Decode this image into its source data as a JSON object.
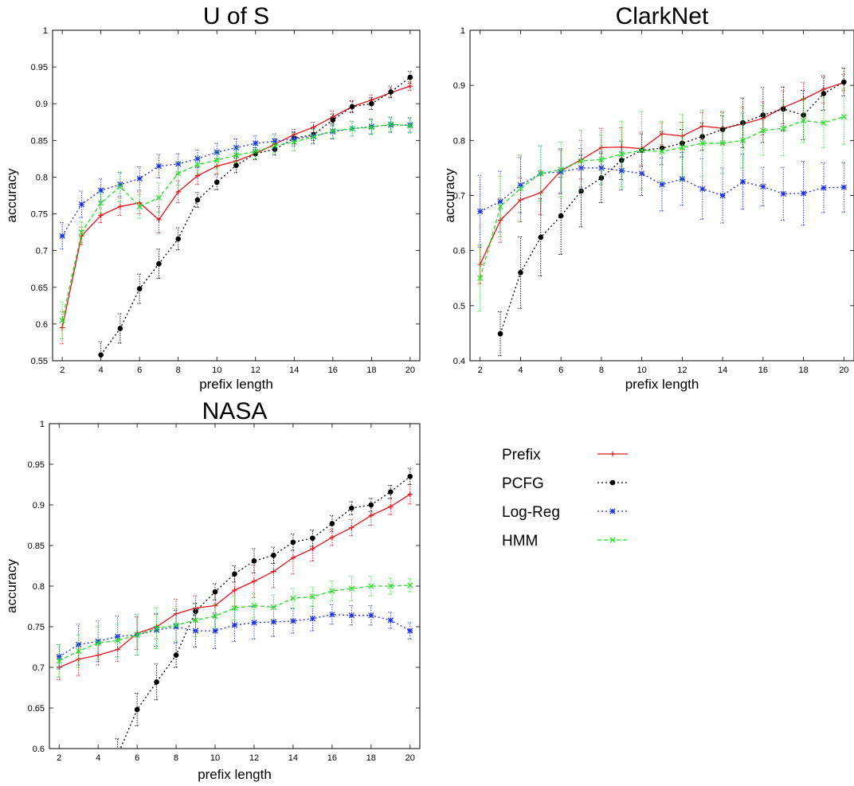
{
  "legend": {
    "placement": "lower-right panel",
    "entries": [
      {
        "label": "Prefix",
        "color": "#e8141b",
        "marker": "plus",
        "dash": "solid"
      },
      {
        "label": "PCFG",
        "color": "#000000",
        "marker": "dot",
        "dash": "dotted"
      },
      {
        "label": "Log-Reg",
        "color": "#1a2ee8",
        "marker": "star",
        "dash": "dotted"
      },
      {
        "label": "HMM",
        "color": "#22e022",
        "marker": "cross",
        "dash": "dashed"
      }
    ]
  },
  "chart_data": [
    {
      "type": "line",
      "title": "U of S",
      "xlabel": "prefix length",
      "ylabel": "accuracy",
      "xlim": [
        1.5,
        20.5
      ],
      "ylim": [
        0.55,
        1
      ],
      "xticks": [
        2,
        4,
        6,
        8,
        10,
        12,
        14,
        16,
        18,
        20
      ],
      "yticks": [
        0.55,
        0.6,
        0.65,
        0.7,
        0.75,
        0.8,
        0.85,
        0.9,
        0.95,
        1
      ],
      "ytick_labels": [
        "0.55",
        "0.6",
        "0.65",
        "0.7",
        "0.75",
        "0.8",
        "0.85",
        "0.9",
        "0.95",
        "1"
      ],
      "grid": false,
      "error_bars": true,
      "x": [
        2,
        3,
        4,
        5,
        6,
        7,
        8,
        9,
        10,
        11,
        12,
        13,
        14,
        15,
        16,
        17,
        18,
        19,
        20
      ],
      "series": [
        {
          "name": "Prefix",
          "values": [
            0.595,
            0.72,
            0.748,
            0.76,
            0.765,
            0.742,
            0.78,
            0.802,
            0.815,
            0.822,
            0.832,
            0.845,
            0.858,
            0.868,
            0.882,
            0.896,
            0.905,
            0.915,
            0.924
          ],
          "err": [
            0.022,
            0.012,
            0.01,
            0.012,
            0.015,
            0.018,
            0.015,
            0.012,
            0.01,
            0.008,
            0.008,
            0.007,
            0.007,
            0.007,
            0.008,
            0.007,
            0.007,
            0.006,
            0.006
          ]
        },
        {
          "name": "PCFG",
          "values": [
            null,
            null,
            0.558,
            0.594,
            0.648,
            0.682,
            0.716,
            0.769,
            0.793,
            0.816,
            0.832,
            0.838,
            0.853,
            0.858,
            0.878,
            0.896,
            0.9,
            0.916,
            0.936
          ],
          "err": [
            null,
            null,
            0.018,
            0.02,
            0.02,
            0.02,
            0.015,
            0.01,
            0.01,
            0.01,
            0.008,
            0.008,
            0.008,
            0.008,
            0.008,
            0.008,
            0.008,
            0.008,
            0.008
          ]
        },
        {
          "name": "Log-Reg",
          "values": [
            0.72,
            0.763,
            0.782,
            0.79,
            0.798,
            0.815,
            0.818,
            0.825,
            0.834,
            0.84,
            0.846,
            0.849,
            0.852,
            0.856,
            0.862,
            0.866,
            0.869,
            0.871,
            0.871
          ],
          "err": [
            0.018,
            0.018,
            0.016,
            0.016,
            0.016,
            0.016,
            0.014,
            0.012,
            0.012,
            0.012,
            0.01,
            0.01,
            0.01,
            0.01,
            0.01,
            0.01,
            0.01,
            0.01,
            0.01
          ]
        },
        {
          "name": "HMM",
          "values": [
            0.605,
            0.725,
            0.765,
            0.787,
            0.76,
            0.772,
            0.805,
            0.817,
            0.823,
            0.83,
            0.835,
            0.843,
            0.848,
            0.855,
            0.863,
            0.866,
            0.868,
            0.872,
            0.87
          ],
          "err": [
            0.025,
            0.014,
            0.014,
            0.02,
            0.016,
            0.02,
            0.016,
            0.012,
            0.012,
            0.01,
            0.01,
            0.01,
            0.012,
            0.01,
            0.01,
            0.01,
            0.01,
            0.01,
            0.01
          ]
        }
      ]
    },
    {
      "type": "line",
      "title": "ClarkNet",
      "xlabel": "prefix length",
      "ylabel": "accuracy",
      "xlim": [
        1.5,
        20.5
      ],
      "ylim": [
        0.4,
        1
      ],
      "xticks": [
        2,
        4,
        6,
        8,
        10,
        12,
        14,
        16,
        18,
        20
      ],
      "yticks": [
        0.4,
        0.5,
        0.6,
        0.7,
        0.8,
        0.9,
        1
      ],
      "ytick_labels": [
        "0.4",
        "0.5",
        "0.6",
        "0.7",
        "0.8",
        "0.9",
        "1"
      ],
      "grid": false,
      "error_bars": true,
      "x": [
        2,
        3,
        4,
        5,
        6,
        7,
        8,
        9,
        10,
        11,
        12,
        13,
        14,
        15,
        16,
        17,
        18,
        19,
        20
      ],
      "series": [
        {
          "name": "Prefix",
          "values": [
            0.575,
            0.655,
            0.692,
            0.705,
            0.745,
            0.765,
            0.787,
            0.788,
            0.785,
            0.812,
            0.808,
            0.826,
            0.822,
            0.83,
            0.84,
            0.86,
            0.875,
            0.893,
            0.905
          ],
          "err": [
            0.035,
            0.04,
            0.04,
            0.04,
            0.04,
            0.035,
            0.035,
            0.035,
            0.03,
            0.02,
            0.025,
            0.025,
            0.03,
            0.03,
            0.03,
            0.03,
            0.03,
            0.025,
            0.015
          ]
        },
        {
          "name": "PCFG",
          "values": [
            null,
            0.449,
            0.56,
            0.624,
            0.663,
            0.708,
            0.732,
            0.764,
            0.782,
            0.786,
            0.795,
            0.807,
            0.82,
            0.832,
            0.846,
            0.857,
            0.846,
            0.885,
            0.906
          ],
          "err": [
            null,
            0.04,
            0.065,
            0.07,
            0.07,
            0.065,
            0.045,
            0.035,
            0.03,
            0.03,
            0.025,
            0.025,
            0.025,
            0.045,
            0.05,
            0.04,
            0.045,
            0.03,
            0.025
          ]
        },
        {
          "name": "Log-Reg",
          "values": [
            0.671,
            0.689,
            0.719,
            0.74,
            0.743,
            0.75,
            0.75,
            0.745,
            0.74,
            0.72,
            0.73,
            0.712,
            0.7,
            0.725,
            0.716,
            0.703,
            0.704,
            0.714,
            0.715
          ],
          "err": [
            0.065,
            0.055,
            0.05,
            0.05,
            0.04,
            0.035,
            0.03,
            0.035,
            0.04,
            0.048,
            0.048,
            0.055,
            0.05,
            0.05,
            0.035,
            0.048,
            0.058,
            0.045,
            0.045
          ]
        },
        {
          "name": "HMM",
          "values": [
            0.55,
            0.68,
            0.713,
            0.74,
            0.747,
            0.763,
            0.765,
            0.775,
            0.782,
            0.78,
            0.787,
            0.795,
            0.795,
            0.8,
            0.818,
            0.822,
            0.836,
            0.832,
            0.843
          ],
          "err": [
            0.06,
            0.055,
            0.06,
            0.05,
            0.05,
            0.055,
            0.045,
            0.06,
            0.07,
            0.055,
            0.06,
            0.06,
            0.055,
            0.05,
            0.045,
            0.05,
            0.04,
            0.045,
            0.05
          ]
        }
      ]
    },
    {
      "type": "line",
      "title": "NASA",
      "xlabel": "prefix length",
      "ylabel": "accuracy",
      "xlim": [
        1.5,
        20.5
      ],
      "ylim": [
        0.6,
        1
      ],
      "xticks": [
        2,
        4,
        6,
        8,
        10,
        12,
        14,
        16,
        18,
        20
      ],
      "yticks": [
        0.6,
        0.65,
        0.7,
        0.75,
        0.8,
        0.85,
        0.9,
        0.95,
        1
      ],
      "ytick_labels": [
        "0.6",
        "0.65",
        "0.7",
        "0.75",
        "0.8",
        "0.85",
        "0.9",
        "0.95",
        "1"
      ],
      "grid": false,
      "error_bars": true,
      "x": [
        2,
        3,
        4,
        5,
        6,
        7,
        8,
        9,
        10,
        11,
        12,
        13,
        14,
        15,
        16,
        17,
        18,
        19,
        20
      ],
      "series": [
        {
          "name": "Prefix",
          "values": [
            0.7,
            0.71,
            0.715,
            0.722,
            0.742,
            0.75,
            0.766,
            0.773,
            0.776,
            0.795,
            0.806,
            0.818,
            0.835,
            0.846,
            0.86,
            0.872,
            0.887,
            0.898,
            0.913
          ],
          "err": [
            0.015,
            0.02,
            0.012,
            0.015,
            0.02,
            0.015,
            0.018,
            0.015,
            0.015,
            0.02,
            0.02,
            0.02,
            0.02,
            0.015,
            0.01,
            0.01,
            0.012,
            0.01,
            0.012
          ]
        },
        {
          "name": "PCFG",
          "values": [
            null,
            null,
            null,
            0.592,
            0.648,
            0.682,
            0.715,
            0.769,
            0.793,
            0.815,
            0.831,
            0.838,
            0.854,
            0.859,
            0.877,
            0.896,
            0.9,
            0.916,
            0.935
          ],
          "err": [
            null,
            null,
            null,
            0.02,
            0.02,
            0.022,
            0.015,
            0.01,
            0.01,
            0.01,
            0.015,
            0.01,
            0.01,
            0.01,
            0.01,
            0.008,
            0.008,
            0.008,
            0.01
          ]
        },
        {
          "name": "Log-Reg",
          "values": [
            0.713,
            0.728,
            0.732,
            0.738,
            0.74,
            0.746,
            0.75,
            0.745,
            0.745,
            0.752,
            0.755,
            0.756,
            0.757,
            0.76,
            0.765,
            0.764,
            0.764,
            0.758,
            0.745
          ],
          "err": [
            0.015,
            0.025,
            0.025,
            0.025,
            0.025,
            0.02,
            0.02,
            0.02,
            0.022,
            0.02,
            0.02,
            0.018,
            0.015,
            0.015,
            0.012,
            0.012,
            0.012,
            0.01,
            0.01
          ]
        },
        {
          "name": "HMM",
          "values": [
            0.708,
            0.72,
            0.73,
            0.733,
            0.74,
            0.748,
            0.752,
            0.758,
            0.763,
            0.773,
            0.776,
            0.774,
            0.785,
            0.787,
            0.794,
            0.797,
            0.8,
            0.8,
            0.801
          ],
          "err": [
            0.02,
            0.02,
            0.02,
            0.02,
            0.025,
            0.025,
            0.02,
            0.02,
            0.015,
            0.015,
            0.015,
            0.015,
            0.012,
            0.012,
            0.012,
            0.015,
            0.012,
            0.01,
            0.008
          ]
        }
      ]
    }
  ]
}
